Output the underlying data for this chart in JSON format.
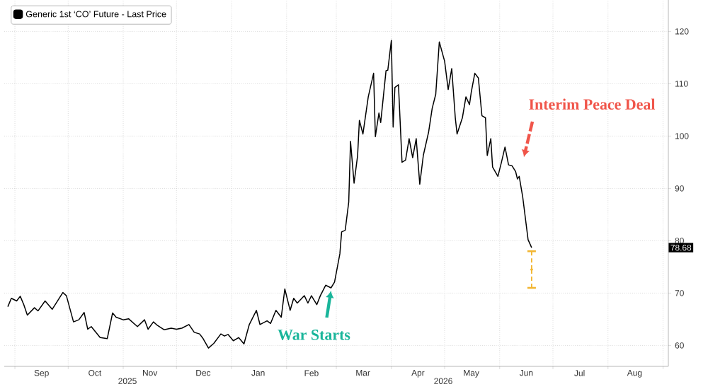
{
  "chart_data": {
    "type": "line",
    "x": [
      "2025-08-28",
      "2025-08-30",
      "2025-09-02",
      "2025-09-04",
      "2025-09-06",
      "2025-09-08",
      "2025-09-12",
      "2025-09-14",
      "2025-09-18",
      "2025-09-22",
      "2025-09-28",
      "2025-09-30",
      "2025-10-04",
      "2025-10-07",
      "2025-10-10",
      "2025-10-12",
      "2025-10-14",
      "2025-10-19",
      "2025-10-23",
      "2025-10-26",
      "2025-10-28",
      "2025-11-01",
      "2025-11-04",
      "2025-11-09",
      "2025-11-13",
      "2025-11-15",
      "2025-11-18",
      "2025-11-20",
      "2025-11-24",
      "2025-11-28",
      "2025-12-01",
      "2025-12-04",
      "2025-12-08",
      "2025-12-11",
      "2025-12-14",
      "2025-12-16",
      "2025-12-19",
      "2025-12-22",
      "2025-12-26",
      "2025-12-28",
      "2025-12-30",
      "2026-01-02",
      "2026-01-05",
      "2026-01-08",
      "2026-01-11",
      "2026-01-15",
      "2026-01-17",
      "2026-01-21",
      "2026-01-23",
      "2026-01-26",
      "2026-01-29",
      "2026-01-31",
      "2026-02-03",
      "2026-02-05",
      "2026-02-07",
      "2026-02-11",
      "2026-02-13",
      "2026-02-15",
      "2026-02-18",
      "2026-02-20",
      "2026-02-23",
      "2026-02-26",
      "2026-02-28",
      "2026-03-03",
      "2026-03-04",
      "2026-03-06",
      "2026-03-08",
      "2026-03-09",
      "2026-03-11",
      "2026-03-13",
      "2026-03-14",
      "2026-03-16",
      "2026-03-19",
      "2026-03-22",
      "2026-03-23",
      "2026-03-25",
      "2026-03-26",
      "2026-03-29",
      "2026-03-30",
      "2026-04-01",
      "2026-04-02",
      "2026-04-03",
      "2026-04-05",
      "2026-04-07",
      "2026-04-09",
      "2026-04-11",
      "2026-04-13",
      "2026-04-15",
      "2026-04-17",
      "2026-04-19",
      "2026-04-22",
      "2026-04-24",
      "2026-04-26",
      "2026-04-28",
      "2026-05-01",
      "2026-05-03",
      "2026-05-05",
      "2026-05-07",
      "2026-05-08",
      "2026-05-11",
      "2026-05-13",
      "2026-05-15",
      "2026-05-16",
      "2026-05-18",
      "2026-05-20",
      "2026-05-22",
      "2026-05-24",
      "2026-05-25",
      "2026-05-27",
      "2026-05-28",
      "2026-05-31",
      "2026-06-02",
      "2026-06-04",
      "2026-06-06",
      "2026-06-08",
      "2026-06-10",
      "2026-06-11",
      "2026-06-12",
      "2026-06-14",
      "2026-06-17",
      "2026-06-19"
    ],
    "series": [
      {
        "name": "Generic 1st ‘CO’ Future - Last Price",
        "color": "#000000",
        "values": [
          67.4,
          69.0,
          68.5,
          69.4,
          67.8,
          65.8,
          67.2,
          66.6,
          68.5,
          66.9,
          70.1,
          69.5,
          64.5,
          64.9,
          66.3,
          63.1,
          63.6,
          61.5,
          61.3,
          66.2,
          65.4,
          64.9,
          65.1,
          63.6,
          64.9,
          63.1,
          64.5,
          63.9,
          63.0,
          63.3,
          63.1,
          63.3,
          64.0,
          62.5,
          62.2,
          61.3,
          59.5,
          60.4,
          62.2,
          61.8,
          62.1,
          60.9,
          61.5,
          60.3,
          64.0,
          66.7,
          64.0,
          64.7,
          64.2,
          66.7,
          65.4,
          70.8,
          66.7,
          69.0,
          68.1,
          69.5,
          68.1,
          69.5,
          67.8,
          69.5,
          71.5,
          71.0,
          72.1,
          77.5,
          81.7,
          82.0,
          87.4,
          99.0,
          91.0,
          96.3,
          103.0,
          100.4,
          107.5,
          112.0,
          99.9,
          104.4,
          102.6,
          112.5,
          112.6,
          118.3,
          101.7,
          109.3,
          109.8,
          95.0,
          95.4,
          99.5,
          95.9,
          99.5,
          90.8,
          96.3,
          100.8,
          105.3,
          108.0,
          118.0,
          114.3,
          108.9,
          112.9,
          103.5,
          100.4,
          103.5,
          107.5,
          106.0,
          108.4,
          112.0,
          111.1,
          103.9,
          103.5,
          96.3,
          99.5,
          94.1,
          92.3,
          95.0,
          97.9,
          94.5,
          94.3,
          93.2,
          91.8,
          92.3,
          88.3,
          80.2,
          78.68
        ]
      },
      {
        "type": "scatter",
        "color": "#f2b632",
        "x": [
          "2026-06-19"
        ],
        "values": [
          74.5
        ],
        "errors": [
          [
            71,
            78
          ]
        ]
      }
    ],
    "xlim": [
      "2025-08-26",
      "2026-09-04"
    ],
    "xticks": [
      {
        "value": "2025-09-01",
        "label": null
      },
      {
        "value": "2025-09-16",
        "label": "Sep"
      },
      {
        "value": "2025-10-01",
        "label": null
      },
      {
        "value": "2025-10-16",
        "label": "Oct"
      },
      {
        "value": "2025-11-01",
        "label": null
      },
      {
        "value": "2025-11-16",
        "label": "Nov"
      },
      {
        "value": "2025-12-01",
        "label": null
      },
      {
        "value": "2025-12-16",
        "label": "Dec"
      },
      {
        "value": "2026-01-01",
        "label": null
      },
      {
        "value": "2026-01-16",
        "label": "Jan"
      },
      {
        "value": "2026-02-01",
        "label": null
      },
      {
        "value": "2026-02-15",
        "label": "Feb"
      },
      {
        "value": "2026-03-01",
        "label": null
      },
      {
        "value": "2026-03-16",
        "label": "Mar"
      },
      {
        "value": "2026-04-01",
        "label": null
      },
      {
        "value": "2026-04-16",
        "label": "Apr"
      },
      {
        "value": "2026-05-01",
        "label": null
      },
      {
        "value": "2026-05-16",
        "label": "May"
      },
      {
        "value": "2026-06-01",
        "label": null
      },
      {
        "value": "2026-06-16",
        "label": "Jun"
      },
      {
        "value": "2026-07-01",
        "label": null
      },
      {
        "value": "2026-07-16",
        "label": "Jul"
      },
      {
        "value": "2026-08-01",
        "label": null
      },
      {
        "value": "2026-08-16",
        "label": "Aug"
      },
      {
        "value": "2026-09-01",
        "label": null
      }
    ],
    "ylim": [
      56,
      126
    ],
    "yticks": [
      60,
      70,
      80,
      90,
      100,
      110,
      120
    ],
    "grid": true,
    "legend": "top left",
    "marker": "none",
    "line_style": "solid",
    "annotations": [
      {
        "text": "War Starts",
        "x": "2026-02-26",
        "y": 71
      },
      "Interim Peace Deal",
      "78.68",
      "2025",
      "2026"
    ]
  }
}
